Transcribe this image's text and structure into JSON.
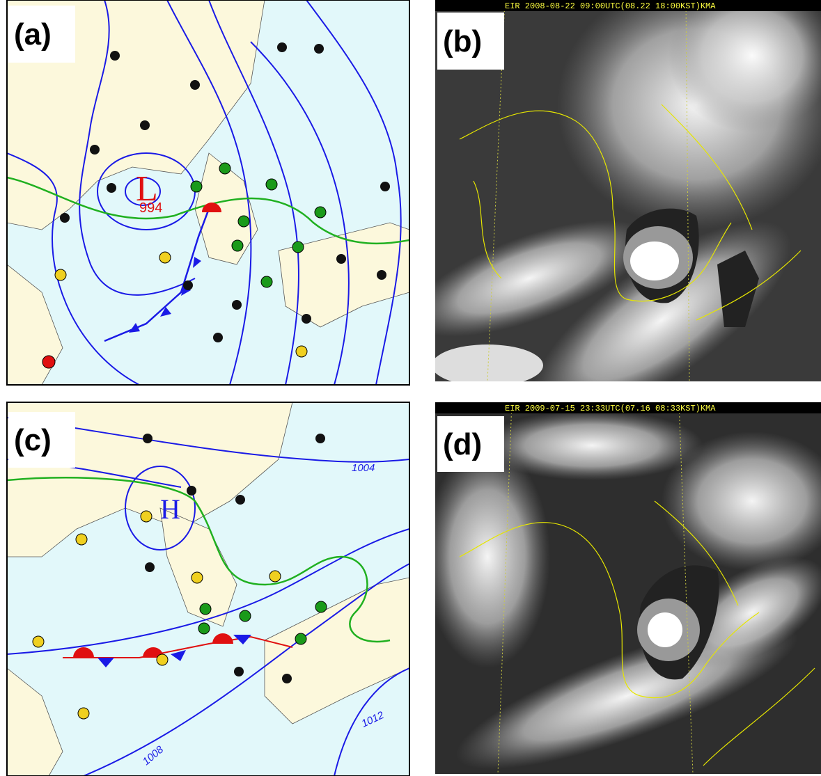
{
  "panels": [
    {
      "label": "(a)",
      "low": "L",
      "pressure": "994"
    },
    {
      "label": "(b)",
      "header": "EIR 2008-08-22 09:00UTC(08.22 18:00KST)KMA"
    },
    {
      "label": "(c)",
      "high": "H",
      "isobars": [
        "1004",
        "1008",
        "1012"
      ]
    },
    {
      "label": "(d)",
      "header": "EIR 2009-07-15 23:33UTC(07.16 08:33KST)KMA"
    }
  ]
}
